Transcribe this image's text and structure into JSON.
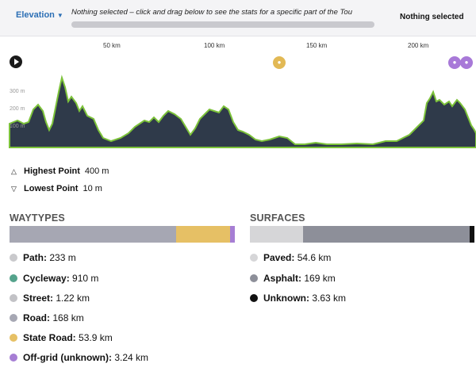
{
  "header": {
    "dropdown_label": "Elevation",
    "hint": "Nothing selected – click and drag below to see the stats for a specific part of the Tou",
    "selection_status": "Nothing selected"
  },
  "axis": {
    "ticks": [
      "50 km",
      "100 km",
      "150 km",
      "200 km"
    ],
    "y_labels": [
      "300 m",
      "200 m",
      "100 m"
    ]
  },
  "stats": {
    "highest_label": "Highest Point",
    "highest_value": "400 m",
    "lowest_label": "Lowest Point",
    "lowest_value": "10 m"
  },
  "waytypes": {
    "title": "WAYTYPES",
    "items": [
      {
        "label": "Path:",
        "value": "233 m",
        "color": "#c9c9cc"
      },
      {
        "label": "Cycleway:",
        "value": "910 m",
        "color": "#55a38c"
      },
      {
        "label": "Street:",
        "value": "1.22 km",
        "color": "#c2c2c6"
      },
      {
        "label": "Road:",
        "value": "168 km",
        "color": "#a6a7b3"
      },
      {
        "label": "State Road:",
        "value": "53.9 km",
        "color": "#e6c065"
      },
      {
        "label": "Off-grid (unknown):",
        "value": "3.24 km",
        "color": "#a67ed4"
      }
    ]
  },
  "surfaces": {
    "title": "SURFACES",
    "items": [
      {
        "label": "Paved:",
        "value": "54.6 km",
        "color": "#d6d6d8"
      },
      {
        "label": "Asphalt:",
        "value": "169 km",
        "color": "#8d8f99"
      },
      {
        "label": "Unknown:",
        "value": "3.63 km",
        "color": "#111111"
      }
    ]
  }
}
